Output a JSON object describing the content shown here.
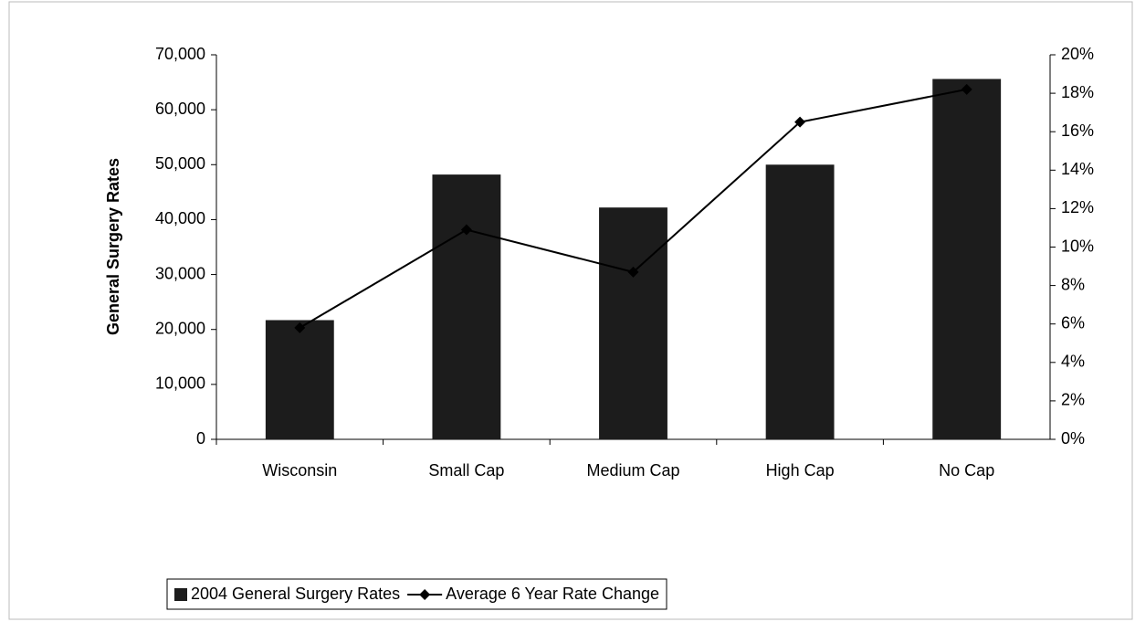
{
  "chart_data": {
    "type": "bar",
    "categories": [
      "Wisconsin",
      "Small Cap",
      "Medium Cap",
      "High Cap",
      "No Cap"
    ],
    "series": [
      {
        "name": "2004 General Surgery Rates",
        "type": "bar",
        "color": "#1c1c1c",
        "values": [
          21700,
          48200,
          42200,
          50000,
          65600
        ]
      },
      {
        "name": "Average 6 Year Rate Change",
        "type": "line",
        "axis": "y2",
        "color": "#000000",
        "values": [
          5.8,
          10.9,
          8.7,
          16.5,
          18.2
        ]
      }
    ],
    "ylabel": "General Surgery Rates",
    "ylim": [
      0,
      70000
    ],
    "yticks": [
      0,
      {
        "value": 10000,
        "label": "10,000"
      },
      {
        "value": 20000,
        "label": "20,000"
      },
      {
        "value": 30000,
        "label": "30,000"
      },
      {
        "value": 40000,
        "label": "40,000"
      },
      {
        "value": 50000,
        "label": "50,000"
      },
      {
        "value": 60000,
        "label": "60,000"
      },
      {
        "value": 70000,
        "label": "70,000"
      }
    ],
    "y2lim": [
      0,
      20
    ],
    "y2ticks": [
      {
        "value": 0,
        "label": "0%"
      },
      {
        "value": 2,
        "label": "2%"
      },
      {
        "value": 4,
        "label": "4%"
      },
      {
        "value": 6,
        "label": "6%"
      },
      {
        "value": 8,
        "label": "8%"
      },
      {
        "value": 10,
        "label": "10%"
      },
      {
        "value": 12,
        "label": "12%"
      },
      {
        "value": 14,
        "label": "14%"
      },
      {
        "value": 16,
        "label": "16%"
      },
      {
        "value": 18,
        "label": "18%"
      },
      {
        "value": 20,
        "label": "20%"
      }
    ],
    "legend": "bottom"
  }
}
